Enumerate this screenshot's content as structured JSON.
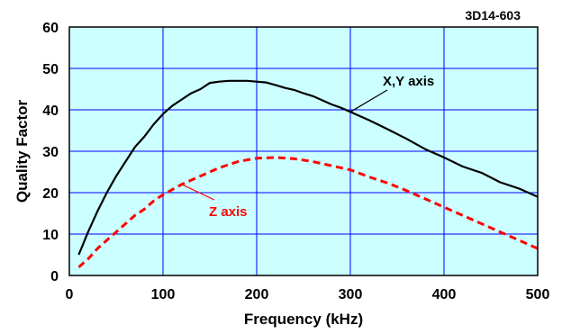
{
  "chart_data": {
    "type": "line",
    "part_label": "3D14-603",
    "xlabel": "Frequency (kHz)",
    "ylabel": "Quality Factor",
    "xlim": [
      0,
      500
    ],
    "ylim": [
      0,
      60
    ],
    "x_ticks": [
      0,
      100,
      200,
      300,
      400,
      500
    ],
    "y_ticks": [
      0,
      10,
      20,
      30,
      40,
      50,
      60
    ],
    "grid": true,
    "plot_background": "#ccffff",
    "grid_color": "#0000ff",
    "series": [
      {
        "name": "X,Y axis",
        "color": "#000000",
        "dash": "solid",
        "x": [
          10,
          20,
          30,
          40,
          50,
          60,
          70,
          80,
          90,
          100,
          110,
          120,
          130,
          140,
          150,
          160,
          170,
          180,
          190,
          200,
          210,
          220,
          230,
          240,
          250,
          260,
          270,
          280,
          290,
          300,
          320,
          340,
          360,
          380,
          400,
          420,
          440,
          460,
          480,
          500
        ],
        "y": [
          5.0,
          10.5,
          15.5,
          20.0,
          24.0,
          27.5,
          31.0,
          33.5,
          36.5,
          39.0,
          41.0,
          42.5,
          44.0,
          45.0,
          46.5,
          46.8,
          47.0,
          47.0,
          47.0,
          46.8,
          46.6,
          46.0,
          45.3,
          44.8,
          44.0,
          43.3,
          42.3,
          41.3,
          40.5,
          39.5,
          37.5,
          35.3,
          33.0,
          30.5,
          28.5,
          26.3,
          24.8,
          22.5,
          21.0,
          19.0
        ]
      },
      {
        "name": "Z axis",
        "color": "#ff0000",
        "dash": "dashed",
        "x": [
          10,
          20,
          30,
          40,
          50,
          60,
          70,
          80,
          90,
          100,
          120,
          140,
          160,
          180,
          200,
          220,
          240,
          260,
          280,
          300,
          320,
          340,
          360,
          380,
          400,
          420,
          440,
          460,
          480,
          500
        ],
        "y": [
          2.0,
          4.0,
          6.5,
          8.5,
          10.5,
          12.5,
          14.5,
          16.0,
          18.0,
          19.5,
          22.0,
          24.0,
          26.0,
          27.5,
          28.3,
          28.5,
          28.2,
          27.5,
          26.5,
          25.5,
          23.8,
          22.3,
          20.5,
          18.5,
          16.5,
          14.5,
          12.5,
          10.5,
          8.5,
          6.5
        ]
      }
    ],
    "annotations": [
      {
        "text": "X,Y axis",
        "color": "#000000",
        "series_index": 0,
        "at_x": 300
      },
      {
        "text": "Z axis",
        "color": "#ff0000",
        "series_index": 1,
        "at_x": 120
      }
    ]
  }
}
